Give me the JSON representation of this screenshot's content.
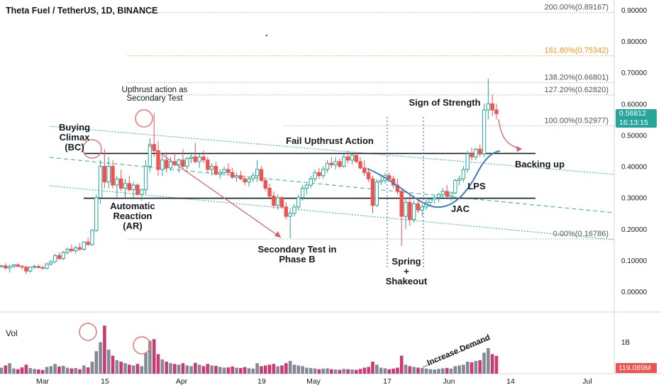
{
  "header": {
    "title": "Theta Fuel / TetherUS, 1D, BINANCE"
  },
  "colors": {
    "up": "#26a69a",
    "down": "#ef5350",
    "text": "#131722",
    "grid": "#e0e3eb",
    "fib_dotted": "#9598a1",
    "fib_orange": "#f7931a",
    "channel": "#58b4b0",
    "arrow": "#d25f68",
    "curve": "#3f7fb8",
    "circle": "#e07a7a",
    "level": "#131722"
  },
  "price_badge": {
    "price": "0.56812",
    "timer": "16:13:15",
    "color": "#26a69a"
  },
  "volume_badge": {
    "value": "119.089M"
  },
  "chart_data": {
    "type": "candlestick",
    "symbol": "Theta Fuel / TetherUS",
    "interval": "1D",
    "exchange": "BINANCE",
    "ylim": [
      -0.015,
      0.925
    ],
    "y_ticks": [
      "0.90000",
      "0.80000",
      "0.70000",
      "0.60000",
      "0.50000",
      "0.40000",
      "0.30000",
      "0.20000",
      "0.10000",
      "0.00000"
    ],
    "x_ticks": [
      "Mar",
      "15",
      "Apr",
      "19",
      "May",
      "17",
      "Jun",
      "14",
      "Jul"
    ],
    "volume_axis_ticks": [
      "1B"
    ],
    "vol_label": "Vol",
    "fib_levels": [
      {
        "label": "200.00%(0.89167)",
        "value": 0.89167,
        "style": "gray"
      },
      {
        "label": "161.80%(0.75342)",
        "value": 0.75342,
        "style": "orange"
      },
      {
        "label": "138.20%(0.66801)",
        "value": 0.66801,
        "style": "gray"
      },
      {
        "label": "127.20%(0.62820)",
        "value": 0.6282,
        "style": "gray"
      },
      {
        "label": "100.00%(0.52977)",
        "value": 0.52977,
        "style": "gray"
      },
      {
        "label": "0.00%(0.16786)",
        "value": 0.16786,
        "style": "gray"
      }
    ],
    "horizontal_levels": [
      0.441,
      0.298
    ],
    "annotations": [
      {
        "id": "buying-climax",
        "lines": [
          "Buying",
          "Climax",
          "(BC)"
        ]
      },
      {
        "id": "upthrust-st",
        "lines": [
          "Upthrust action as",
          "Secondary Test"
        ]
      },
      {
        "id": "fail-upthrust",
        "lines": [
          "Fail Upthrust Action"
        ]
      },
      {
        "id": "sign-of-strength",
        "lines": [
          "Sign of Strength"
        ]
      },
      {
        "id": "backing-up",
        "lines": [
          "Backing up"
        ]
      },
      {
        "id": "automatic-reaction",
        "lines": [
          "Automatic",
          "Reaction",
          "(AR)"
        ]
      },
      {
        "id": "secondary-test-b",
        "lines": [
          "Secondary Test in",
          "Phase B"
        ]
      },
      {
        "id": "lps",
        "lines": [
          "LPS"
        ]
      },
      {
        "id": "jac",
        "lines": [
          "JAC"
        ]
      },
      {
        "id": "spring-shakeout",
        "lines": [
          "Spring",
          "+",
          "Shakeout"
        ]
      },
      {
        "id": "increase-demand",
        "lines": [
          "Increase Demand"
        ]
      }
    ],
    "candles": [
      [
        0.08,
        0.085,
        0.075,
        0.082,
        40
      ],
      [
        0.082,
        0.09,
        0.07,
        0.075,
        55
      ],
      [
        0.075,
        0.085,
        0.06,
        0.08,
        70
      ],
      [
        0.08,
        0.088,
        0.075,
        0.085,
        35
      ],
      [
        0.085,
        0.09,
        0.078,
        0.08,
        30
      ],
      [
        0.08,
        0.085,
        0.07,
        0.078,
        42
      ],
      [
        0.078,
        0.082,
        0.055,
        0.065,
        60
      ],
      [
        0.065,
        0.08,
        0.06,
        0.078,
        38
      ],
      [
        0.078,
        0.085,
        0.072,
        0.08,
        32
      ],
      [
        0.08,
        0.086,
        0.074,
        0.076,
        28
      ],
      [
        0.076,
        0.082,
        0.07,
        0.074,
        25
      ],
      [
        0.074,
        0.092,
        0.07,
        0.088,
        45
      ],
      [
        0.088,
        0.1,
        0.082,
        0.095,
        50
      ],
      [
        0.095,
        0.12,
        0.09,
        0.115,
        65
      ],
      [
        0.115,
        0.125,
        0.1,
        0.105,
        48
      ],
      [
        0.105,
        0.13,
        0.1,
        0.125,
        52
      ],
      [
        0.125,
        0.14,
        0.118,
        0.135,
        40
      ],
      [
        0.135,
        0.15,
        0.125,
        0.13,
        35
      ],
      [
        0.13,
        0.145,
        0.12,
        0.14,
        38
      ],
      [
        0.14,
        0.155,
        0.13,
        0.135,
        30
      ],
      [
        0.135,
        0.16,
        0.13,
        0.158,
        55
      ],
      [
        0.158,
        0.172,
        0.145,
        0.15,
        42
      ],
      [
        0.15,
        0.2,
        0.145,
        0.195,
        80
      ],
      [
        0.195,
        0.31,
        0.19,
        0.3,
        150
      ],
      [
        0.3,
        0.42,
        0.28,
        0.4,
        210
      ],
      [
        0.4,
        0.455,
        0.33,
        0.35,
        320
      ],
      [
        0.35,
        0.43,
        0.33,
        0.4,
        160
      ],
      [
        0.4,
        0.42,
        0.33,
        0.34,
        120
      ],
      [
        0.34,
        0.37,
        0.3,
        0.36,
        90
      ],
      [
        0.36,
        0.39,
        0.32,
        0.33,
        80
      ],
      [
        0.33,
        0.36,
        0.3,
        0.345,
        70
      ],
      [
        0.345,
        0.37,
        0.32,
        0.325,
        60
      ],
      [
        0.325,
        0.35,
        0.3,
        0.34,
        55
      ],
      [
        0.34,
        0.345,
        0.305,
        0.31,
        65
      ],
      [
        0.31,
        0.33,
        0.29,
        0.325,
        50
      ],
      [
        0.325,
        0.42,
        0.31,
        0.4,
        140
      ],
      [
        0.4,
        0.49,
        0.38,
        0.47,
        220
      ],
      [
        0.47,
        0.57,
        0.43,
        0.45,
        230
      ],
      [
        0.45,
        0.48,
        0.37,
        0.39,
        130
      ],
      [
        0.39,
        0.44,
        0.37,
        0.42,
        95
      ],
      [
        0.42,
        0.445,
        0.38,
        0.395,
        80
      ],
      [
        0.395,
        0.43,
        0.385,
        0.415,
        70
      ],
      [
        0.415,
        0.445,
        0.4,
        0.405,
        65
      ],
      [
        0.405,
        0.425,
        0.38,
        0.42,
        60
      ],
      [
        0.42,
        0.455,
        0.39,
        0.4,
        70
      ],
      [
        0.4,
        0.43,
        0.39,
        0.425,
        55
      ],
      [
        0.425,
        0.445,
        0.41,
        0.43,
        50
      ],
      [
        0.43,
        0.475,
        0.41,
        0.415,
        72
      ],
      [
        0.415,
        0.44,
        0.395,
        0.43,
        60
      ],
      [
        0.43,
        0.45,
        0.41,
        0.42,
        50
      ],
      [
        0.42,
        0.43,
        0.38,
        0.39,
        65
      ],
      [
        0.39,
        0.41,
        0.37,
        0.4,
        55
      ],
      [
        0.4,
        0.415,
        0.37,
        0.375,
        52
      ],
      [
        0.375,
        0.39,
        0.36,
        0.38,
        45
      ],
      [
        0.38,
        0.4,
        0.37,
        0.39,
        40
      ],
      [
        0.39,
        0.41,
        0.375,
        0.38,
        42
      ],
      [
        0.38,
        0.395,
        0.36,
        0.365,
        48
      ],
      [
        0.365,
        0.38,
        0.35,
        0.37,
        40
      ],
      [
        0.37,
        0.385,
        0.355,
        0.36,
        38
      ],
      [
        0.36,
        0.37,
        0.34,
        0.35,
        44
      ],
      [
        0.35,
        0.365,
        0.335,
        0.36,
        36
      ],
      [
        0.36,
        0.38,
        0.35,
        0.37,
        34
      ],
      [
        0.37,
        0.42,
        0.35,
        0.39,
        70
      ],
      [
        0.39,
        0.4,
        0.35,
        0.355,
        50
      ],
      [
        0.355,
        0.365,
        0.32,
        0.33,
        55
      ],
      [
        0.33,
        0.345,
        0.3,
        0.305,
        60
      ],
      [
        0.305,
        0.32,
        0.265,
        0.275,
        65
      ],
      [
        0.275,
        0.31,
        0.26,
        0.3,
        50
      ],
      [
        0.3,
        0.305,
        0.265,
        0.27,
        55
      ],
      [
        0.27,
        0.285,
        0.23,
        0.24,
        70
      ],
      [
        0.24,
        0.26,
        0.17,
        0.25,
        85
      ],
      [
        0.25,
        0.28,
        0.24,
        0.27,
        60
      ],
      [
        0.27,
        0.31,
        0.26,
        0.3,
        55
      ],
      [
        0.3,
        0.34,
        0.29,
        0.33,
        50
      ],
      [
        0.33,
        0.345,
        0.31,
        0.34,
        40
      ],
      [
        0.34,
        0.37,
        0.33,
        0.36,
        38
      ],
      [
        0.36,
        0.39,
        0.35,
        0.38,
        35
      ],
      [
        0.38,
        0.395,
        0.36,
        0.37,
        30
      ],
      [
        0.37,
        0.4,
        0.36,
        0.39,
        34
      ],
      [
        0.39,
        0.42,
        0.38,
        0.41,
        36
      ],
      [
        0.41,
        0.43,
        0.395,
        0.405,
        30
      ],
      [
        0.405,
        0.43,
        0.39,
        0.415,
        28
      ],
      [
        0.415,
        0.425,
        0.395,
        0.4,
        26
      ],
      [
        0.4,
        0.44,
        0.395,
        0.43,
        32
      ],
      [
        0.43,
        0.45,
        0.41,
        0.42,
        30
      ],
      [
        0.42,
        0.44,
        0.405,
        0.435,
        28
      ],
      [
        0.435,
        0.445,
        0.41,
        0.415,
        26
      ],
      [
        0.415,
        0.43,
        0.39,
        0.395,
        32
      ],
      [
        0.395,
        0.42,
        0.37,
        0.38,
        40
      ],
      [
        0.38,
        0.395,
        0.35,
        0.36,
        45
      ],
      [
        0.36,
        0.37,
        0.25,
        0.275,
        80
      ],
      [
        0.275,
        0.36,
        0.27,
        0.35,
        60
      ],
      [
        0.35,
        0.375,
        0.34,
        0.355,
        40
      ],
      [
        0.355,
        0.38,
        0.345,
        0.37,
        36
      ],
      [
        0.37,
        0.38,
        0.35,
        0.36,
        30
      ],
      [
        0.36,
        0.37,
        0.33,
        0.34,
        34
      ],
      [
        0.34,
        0.36,
        0.31,
        0.32,
        40
      ],
      [
        0.32,
        0.33,
        0.145,
        0.24,
        120
      ],
      [
        0.24,
        0.3,
        0.2,
        0.285,
        60
      ],
      [
        0.285,
        0.31,
        0.21,
        0.23,
        50
      ],
      [
        0.23,
        0.29,
        0.22,
        0.28,
        45
      ],
      [
        0.28,
        0.3,
        0.25,
        0.26,
        40
      ],
      [
        0.26,
        0.28,
        0.24,
        0.27,
        38
      ],
      [
        0.27,
        0.3,
        0.26,
        0.285,
        34
      ],
      [
        0.285,
        0.3,
        0.275,
        0.295,
        30
      ],
      [
        0.295,
        0.31,
        0.28,
        0.3,
        28
      ],
      [
        0.3,
        0.315,
        0.285,
        0.31,
        32
      ],
      [
        0.31,
        0.33,
        0.3,
        0.32,
        36
      ],
      [
        0.32,
        0.34,
        0.3,
        0.305,
        38
      ],
      [
        0.305,
        0.32,
        0.29,
        0.315,
        34
      ],
      [
        0.315,
        0.36,
        0.31,
        0.355,
        50
      ],
      [
        0.355,
        0.37,
        0.34,
        0.36,
        55
      ],
      [
        0.36,
        0.4,
        0.35,
        0.39,
        60
      ],
      [
        0.39,
        0.45,
        0.38,
        0.44,
        80
      ],
      [
        0.44,
        0.46,
        0.42,
        0.43,
        75
      ],
      [
        0.43,
        0.46,
        0.42,
        0.455,
        85
      ],
      [
        0.455,
        0.47,
        0.43,
        0.44,
        90
      ],
      [
        0.44,
        0.6,
        0.43,
        0.58,
        140
      ],
      [
        0.58,
        0.68,
        0.55,
        0.6,
        170
      ],
      [
        0.6,
        0.63,
        0.56,
        0.58,
        130
      ],
      [
        0.58,
        0.6,
        0.55,
        0.568,
        119
      ]
    ]
  }
}
